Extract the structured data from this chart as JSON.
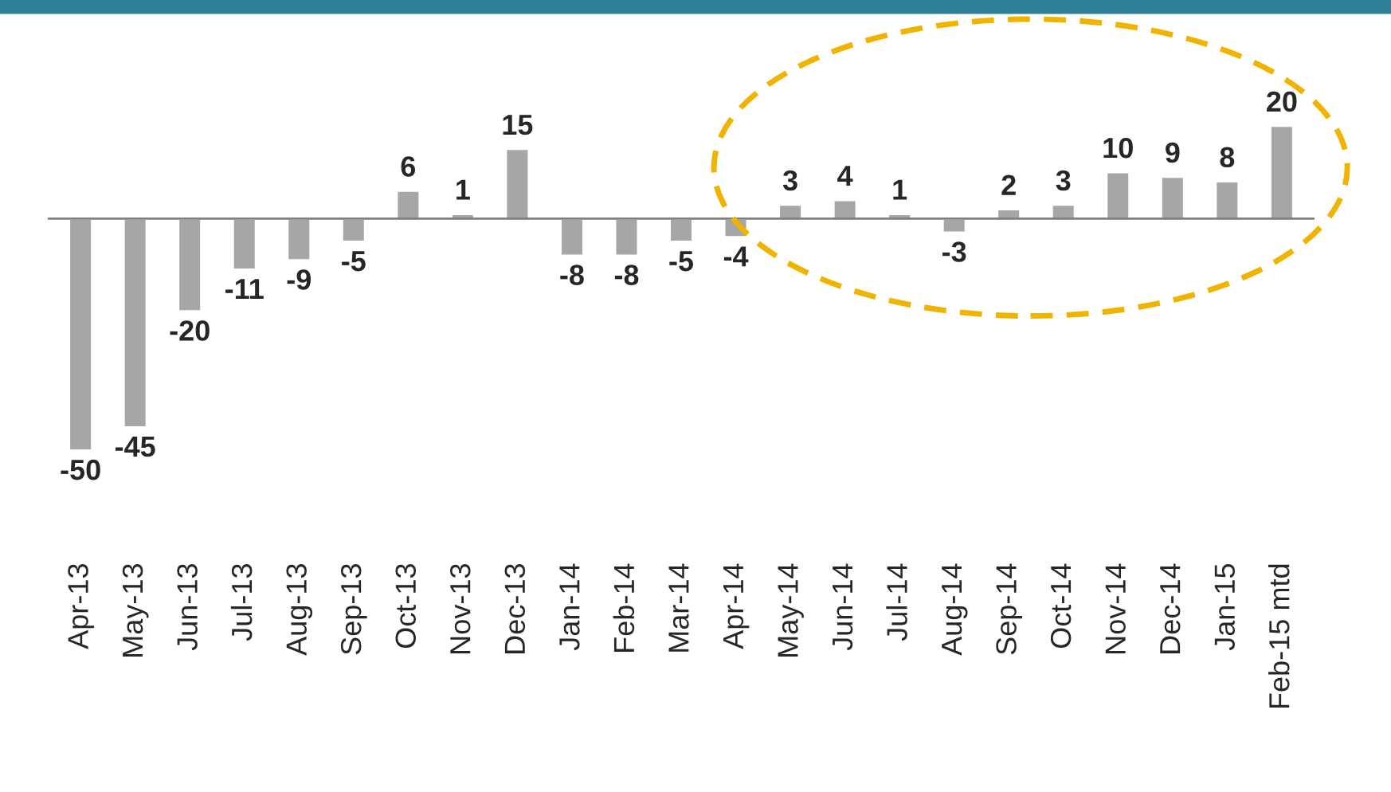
{
  "chart_data": {
    "type": "bar",
    "categories": [
      "Apr-13",
      "May-13",
      "Jun-13",
      "Jul-13",
      "Aug-13",
      "Sep-13",
      "Oct-13",
      "Nov-13",
      "Dec-13",
      "Jan-14",
      "Feb-14",
      "Mar-14",
      "Apr-14",
      "May-14",
      "Jun-14",
      "Jul-14",
      "Aug-14",
      "Sep-14",
      "Oct-14",
      "Nov-14",
      "Dec-14",
      "Jan-15",
      "Feb-15 mtd"
    ],
    "values": [
      -50,
      -45,
      -20,
      -11,
      -9,
      -5,
      6,
      1,
      15,
      -8,
      -8,
      -5,
      -4,
      3,
      4,
      1,
      -3,
      2,
      3,
      10,
      9,
      8,
      20
    ],
    "color": "#a6a6a6",
    "data_labels": true
  }
}
